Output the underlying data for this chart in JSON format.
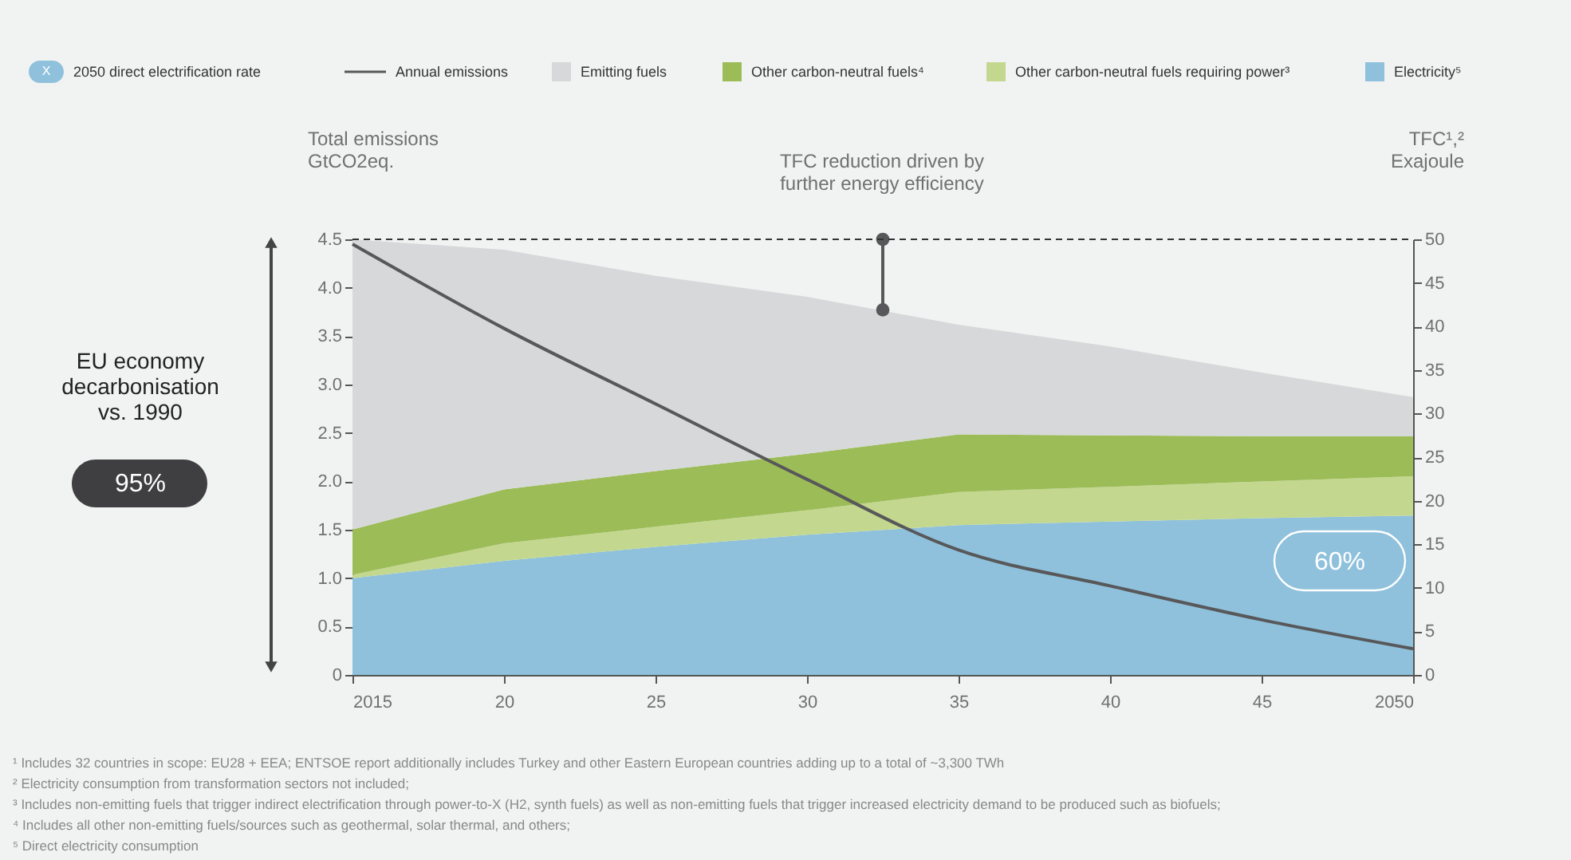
{
  "chart_data": {
    "type": "area",
    "stacked": true,
    "ylabel": "Total emissions\nGtCO2eq.",
    "y2label": "TFC¹,²\nExajoule",
    "x": [
      2015,
      2020,
      2025,
      2030,
      2035,
      2040,
      2045,
      2050
    ],
    "series": [
      {
        "name": "Electricity⁵",
        "color": "#8fc1dc",
        "axis": "y2",
        "values": [
          11.1,
          13.1,
          14.7,
          16.1,
          17.2,
          17.6,
          18.0,
          18.3
        ]
      },
      {
        "name": "Other carbon-neutral fuels requiring power³",
        "color": "#c3d88e",
        "axis": "y2",
        "values": [
          0.4,
          2.0,
          2.3,
          2.8,
          3.8,
          4.0,
          4.2,
          4.5
        ]
      },
      {
        "name": "Other carbon-neutral fuels⁴",
        "color": "#9cbc58",
        "axis": "y2",
        "values": [
          5.2,
          6.2,
          6.4,
          6.5,
          6.6,
          5.9,
          5.2,
          4.6
        ]
      },
      {
        "name": "Emitting fuels",
        "color": "#d7d8da",
        "axis": "y2",
        "values": [
          33.3,
          27.5,
          22.4,
          18.0,
          12.6,
          10.2,
          7.3,
          4.5
        ]
      },
      {
        "color": "#58585a",
        "type": "line",
        "axis": "y2",
        "marker": "circle",
        "x": [
          2032.5,
          2032.5
        ],
        "values": [
          50,
          41.9
        ]
      },
      {
        "name": "Annual emissions",
        "color": "#58585a",
        "type": "line",
        "axis": "y",
        "values": [
          4.45,
          3.58,
          2.8,
          2.02,
          1.29,
          0.92,
          0.57,
          0.27
        ]
      }
    ],
    "xlim": [
      2015,
      2050
    ],
    "xticks": [
      2015,
      {
        "value": 2020,
        "label": "20"
      },
      {
        "value": 2025,
        "label": "25"
      },
      {
        "value": 2030,
        "label": "30"
      },
      {
        "value": 2035,
        "label": "35"
      },
      {
        "value": 2040,
        "label": "40"
      },
      {
        "value": 2045,
        "label": "45"
      },
      2050
    ],
    "ylim": [
      0,
      4.5
    ],
    "yticks": [
      0,
      0.5,
      {
        "value": 1,
        "label": "1.0"
      },
      1.5,
      {
        "value": 2,
        "label": "2.0"
      },
      2.5,
      {
        "value": 3,
        "label": "3.0"
      },
      3.5,
      {
        "value": 4,
        "label": "4.0"
      },
      4.5
    ],
    "y2lim": [
      0,
      50
    ],
    "y2ticks": [
      0,
      5,
      10,
      15,
      20,
      25,
      30,
      35,
      40,
      45,
      50
    ],
    "ref_lines": [
      {
        "axis": "y",
        "value": 4.5,
        "line_style": "dashed",
        "color": "#333333"
      }
    ],
    "annotations": [
      "TFC reduction driven by\nfurther energy efficiency",
      "EU economy\ndecarbonisation\nvs. 1990",
      "95%",
      "60%",
      "2050 direct electrification rate",
      "X",
      "¹ Includes 32 countries in scope: EU28 + EEA; ENTSOE report additionally includes Turkey and other Eastern European countries adding up to a total of ~3,300 TWh",
      "² Electricity consumption from transformation sectors not included;",
      "³ Includes non-emitting fuels that trigger indirect electrification through power-to-X (H2, synth fuels) as well as non-emitting fuels that trigger increased electricity demand to be produced such as biofuels;",
      "⁴ Includes all other non-emitting fuels/sources such as geothermal, solar thermal, and others;",
      "⁵ Direct electricity consumption"
    ],
    "legend": "top",
    "grid": false,
    "marker": "none",
    "line_style": "solid"
  }
}
